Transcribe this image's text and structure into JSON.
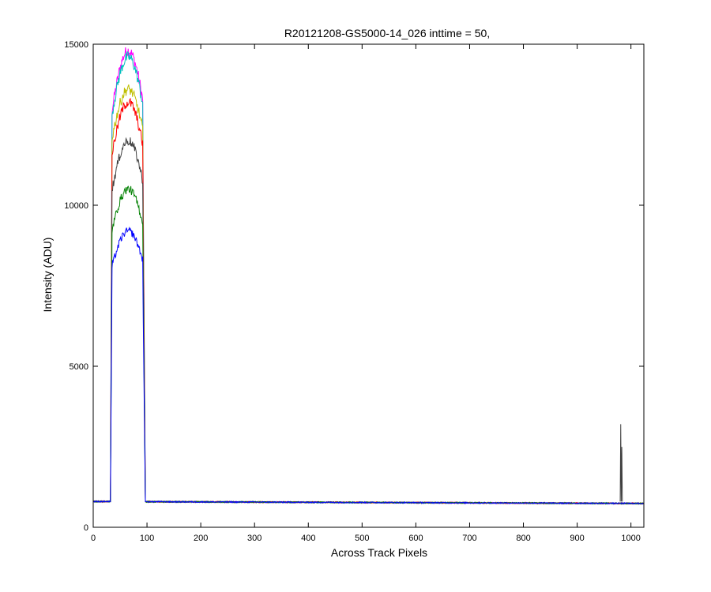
{
  "chart_data": {
    "type": "line",
    "title": "R20121208-GS5000-14_026 inttime = 50,",
    "xlabel": "Across Track Pixels",
    "ylabel": "Intensity (ADU)",
    "xlim": [
      0,
      1024
    ],
    "ylim": [
      0,
      15000
    ],
    "x_ticks": [
      "0",
      "100",
      "200",
      "300",
      "400",
      "500",
      "600",
      "700",
      "800",
      "900",
      "1000"
    ],
    "y_ticks": [
      "0",
      "5000",
      "10000",
      "15000"
    ],
    "grid": false,
    "legend": "none",
    "baseline_level": 800,
    "active_region_x": [
      30,
      95
    ],
    "spike": {
      "x": 982,
      "y": 3200
    },
    "series": [
      {
        "color": "#ff00ff",
        "peak": 14800,
        "plateau_start": 12600
      },
      {
        "color": "#00bfbf",
        "peak": 14600,
        "plateau_start": 12500
      },
      {
        "color": "#bfbf00",
        "peak": 13600,
        "plateau_start": 11800
      },
      {
        "color": "#ff0000",
        "peak": 13200,
        "plateau_start": 11300
      },
      {
        "color": "#404040",
        "peak": 12000,
        "plateau_start": 10200
      },
      {
        "color": "#008000",
        "peak": 10500,
        "plateau_start": 9000
      },
      {
        "color": "#0000ff",
        "peak": 9200,
        "plateau_start": 7900
      }
    ]
  }
}
